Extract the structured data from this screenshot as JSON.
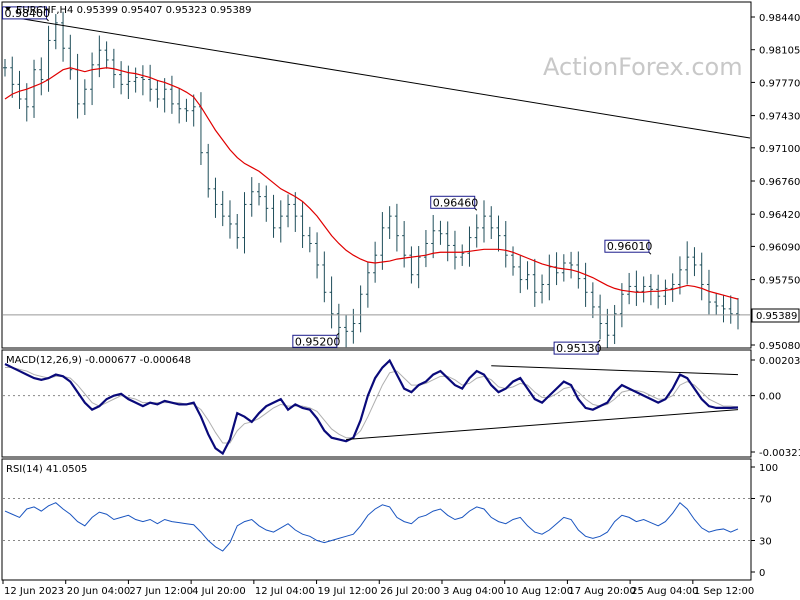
{
  "chart_data": {
    "type": "line",
    "symbol": "EURCHF",
    "timeframe": "H4",
    "header": "EURCHF,H4  0.95399 0.95407 0.95323 0.95389",
    "watermark": "ActionForex.com",
    "last_price": "0.95389",
    "price_axis": {
      "ticks": [
        "0.98440",
        "0.98105",
        "0.97770",
        "0.97430",
        "0.97100",
        "0.96760",
        "0.96420",
        "0.96090",
        "0.95750",
        "0.95080"
      ],
      "range": [
        0.9508,
        0.9844
      ]
    },
    "time_axis": [
      "12 Jun 2023",
      "20 Jun 04:00",
      "27 Jun 12:00",
      "4 Jul 20:00",
      "12 Jul 04:00",
      "19 Jul 12:00",
      "26 Jul 20:00",
      "3 Aug 04:00",
      "10 Aug 12:00",
      "17 Aug 20:00",
      "25 Aug 04:00",
      "1 Sep 12:00"
    ],
    "price_series_close": [
      0.9792,
      0.9775,
      0.976,
      0.9752,
      0.979,
      0.978,
      0.982,
      0.9838,
      0.9812,
      0.979,
      0.9755,
      0.977,
      0.9795,
      0.981,
      0.98,
      0.9785,
      0.9775,
      0.9778,
      0.9782,
      0.978,
      0.977,
      0.976,
      0.977,
      0.9755,
      0.975,
      0.9748,
      0.9752,
      0.9705,
      0.9668,
      0.9652,
      0.964,
      0.9632,
      0.9618,
      0.9652,
      0.9665,
      0.966,
      0.9648,
      0.9628,
      0.964,
      0.9652,
      0.964,
      0.962,
      0.9612,
      0.959,
      0.9562,
      0.954,
      0.9526,
      0.9522,
      0.953,
      0.956,
      0.9582,
      0.96,
      0.9628,
      0.964,
      0.962,
      0.96,
      0.958,
      0.9598,
      0.9612,
      0.9625,
      0.9622,
      0.961,
      0.9598,
      0.9602,
      0.9618,
      0.9628,
      0.964,
      0.9628,
      0.962,
      0.96,
      0.9588,
      0.9575,
      0.958,
      0.9562,
      0.957,
      0.9588,
      0.9582,
      0.9592,
      0.959,
      0.9576,
      0.9562,
      0.9547,
      0.953,
      0.9518,
      0.954,
      0.956,
      0.9568,
      0.9563,
      0.9568,
      0.9565,
      0.9558,
      0.9566,
      0.957,
      0.9585,
      0.9598,
      0.959,
      0.957,
      0.9552,
      0.9548,
      0.9545,
      0.954,
      0.9539
    ],
    "sma_series": [
      0.976,
      0.9765,
      0.9768,
      0.977,
      0.9773,
      0.9776,
      0.978,
      0.9785,
      0.979,
      0.9792,
      0.979,
      0.9788,
      0.979,
      0.9791,
      0.9792,
      0.9791,
      0.9789,
      0.9787,
      0.9786,
      0.9784,
      0.9782,
      0.9779,
      0.9777,
      0.9774,
      0.9771,
      0.9767,
      0.9762,
      0.9752,
      0.974,
      0.9728,
      0.9718,
      0.9708,
      0.97,
      0.9694,
      0.969,
      0.9686,
      0.968,
      0.9674,
      0.9668,
      0.9664,
      0.966,
      0.9655,
      0.9648,
      0.964,
      0.963,
      0.962,
      0.9612,
      0.9605,
      0.96,
      0.9596,
      0.9593,
      0.9592,
      0.9593,
      0.9594,
      0.9596,
      0.9597,
      0.9598,
      0.9599,
      0.96,
      0.9602,
      0.9603,
      0.9603,
      0.9603,
      0.9603,
      0.9604,
      0.9605,
      0.9606,
      0.9606,
      0.9606,
      0.9605,
      0.9603,
      0.96,
      0.9597,
      0.9594,
      0.9591,
      0.9589,
      0.9587,
      0.9586,
      0.9585,
      0.9583,
      0.958,
      0.9577,
      0.9573,
      0.9569,
      0.9566,
      0.9564,
      0.9563,
      0.9562,
      0.9562,
      0.9563,
      0.9563,
      0.9564,
      0.9565,
      0.9567,
      0.9569,
      0.9568,
      0.9566,
      0.9563,
      0.9561,
      0.9559,
      0.9557,
      0.9555
    ],
    "trendline": {
      "from": [
        0,
        0.9845
      ],
      "to": [
        101,
        0.972
      ]
    },
    "callouts": [
      {
        "label": "0.98400",
        "index": 6,
        "price": 0.984
      },
      {
        "label": "0.96460",
        "index": 65,
        "price": 0.9646
      },
      {
        "label": "0.96010",
        "index": 89,
        "price": 0.9601
      },
      {
        "label": "0.95200",
        "index": 46,
        "price": 0.952
      },
      {
        "label": "0.95130",
        "index": 82,
        "price": 0.9513
      }
    ],
    "macd": {
      "header": "MACD(12,26,9) -0.000677 -0.000648",
      "ticks": [
        "0.002031",
        "0.00",
        "-0.003214"
      ],
      "range": [
        -0.003214,
        0.002031
      ],
      "macd_line": [
        0.0018,
        0.0016,
        0.0014,
        0.0012,
        0.001,
        0.0009,
        0.001,
        0.0012,
        0.0011,
        0.0008,
        0.0002,
        -0.0004,
        -0.0008,
        -0.0006,
        -0.0002,
        0.0,
        0.0001,
        -0.0002,
        -0.0004,
        -0.0006,
        -0.0004,
        -0.0005,
        -0.0003,
        -0.0004,
        -0.0005,
        -0.0005,
        -0.0004,
        -0.0012,
        -0.0022,
        -0.003,
        -0.0033,
        -0.0025,
        -0.001,
        -0.0012,
        -0.0015,
        -0.001,
        -0.0006,
        -0.0004,
        -0.0002,
        -0.0008,
        -0.0005,
        -0.0007,
        -0.0008,
        -0.0013,
        -0.002,
        -0.0024,
        -0.0025,
        -0.0026,
        -0.0024,
        -0.0014,
        0.0,
        0.001,
        0.0016,
        0.002,
        0.0012,
        0.0004,
        0.0002,
        0.0006,
        0.0008,
        0.0012,
        0.0014,
        0.001,
        0.0006,
        0.0004,
        0.001,
        0.0014,
        0.0012,
        0.0006,
        0.0002,
        0.0004,
        0.0008,
        0.001,
        0.0004,
        -0.0002,
        -0.0004,
        0.0,
        0.0004,
        0.0008,
        0.0006,
        -0.0002,
        -0.0007,
        -0.0008,
        -0.0006,
        -0.0004,
        0.0002,
        0.0006,
        0.0004,
        0.0002,
        0.0,
        -0.0002,
        -0.0004,
        -0.0002,
        0.0004,
        0.0012,
        0.001,
        0.0004,
        -0.0002,
        -0.0006,
        -0.0007,
        -0.0007,
        -0.0007,
        -0.000677
      ],
      "signal_line": [
        0.0016,
        0.0016,
        0.0015,
        0.0014,
        0.0012,
        0.0011,
        0.001,
        0.0011,
        0.0011,
        0.001,
        0.0006,
        0.0001,
        -0.0004,
        -0.0006,
        -0.0004,
        -0.0002,
        0.0,
        -0.0001,
        -0.0002,
        -0.0004,
        -0.0004,
        -0.0004,
        -0.0004,
        -0.0004,
        -0.0004,
        -0.0005,
        -0.0005,
        -0.0008,
        -0.0014,
        -0.0021,
        -0.0027,
        -0.0027,
        -0.002,
        -0.0016,
        -0.0015,
        -0.0013,
        -0.001,
        -0.0007,
        -0.0005,
        -0.0006,
        -0.0006,
        -0.0006,
        -0.0007,
        -0.0009,
        -0.0014,
        -0.0019,
        -0.0022,
        -0.0024,
        -0.0024,
        -0.002,
        -0.0012,
        -0.0003,
        0.0006,
        0.0013,
        0.0014,
        0.001,
        0.0006,
        0.0006,
        0.0007,
        0.0009,
        0.0011,
        0.0011,
        0.0009,
        0.0006,
        0.0007,
        0.001,
        0.0011,
        0.0009,
        0.0005,
        0.0004,
        0.0005,
        0.0007,
        0.0006,
        0.0002,
        -0.0001,
        -0.0001,
        0.0001,
        0.0004,
        0.0005,
        0.0002,
        -0.0002,
        -0.0005,
        -0.0006,
        -0.0005,
        -0.0002,
        0.0002,
        0.0003,
        0.0003,
        0.0002,
        0.0,
        -0.0002,
        -0.0002,
        0.0,
        0.0006,
        0.0008,
        0.0006,
        0.0002,
        -0.0002,
        -0.0004,
        -0.0006,
        -0.0006,
        -0.000648
      ],
      "upper_trendline": {
        "from": [
          67,
          0.0017
        ],
        "to": [
          101,
          0.0012
        ]
      },
      "lower_trendline": {
        "from": [
          47,
          -0.0025
        ],
        "to": [
          101,
          -0.0008
        ]
      }
    },
    "rsi": {
      "header": "RSI(14) 41.0505",
      "ticks": [
        "100",
        "70",
        "30",
        "0"
      ],
      "range": [
        0,
        100
      ],
      "levels": [
        70,
        30
      ],
      "values": [
        58,
        55,
        52,
        60,
        62,
        58,
        63,
        66,
        60,
        55,
        48,
        44,
        52,
        57,
        55,
        50,
        52,
        54,
        50,
        48,
        50,
        46,
        50,
        48,
        47,
        46,
        45,
        38,
        30,
        24,
        20,
        28,
        44,
        48,
        50,
        44,
        40,
        38,
        42,
        46,
        40,
        36,
        34,
        30,
        28,
        30,
        32,
        34,
        36,
        44,
        54,
        60,
        64,
        62,
        52,
        48,
        46,
        52,
        54,
        58,
        60,
        54,
        50,
        52,
        58,
        62,
        60,
        52,
        48,
        46,
        50,
        52,
        44,
        38,
        36,
        40,
        46,
        52,
        50,
        40,
        34,
        32,
        34,
        38,
        48,
        54,
        52,
        48,
        50,
        47,
        44,
        48,
        56,
        66,
        60,
        50,
        42,
        38,
        40,
        41,
        38,
        41.0505
      ]
    }
  }
}
